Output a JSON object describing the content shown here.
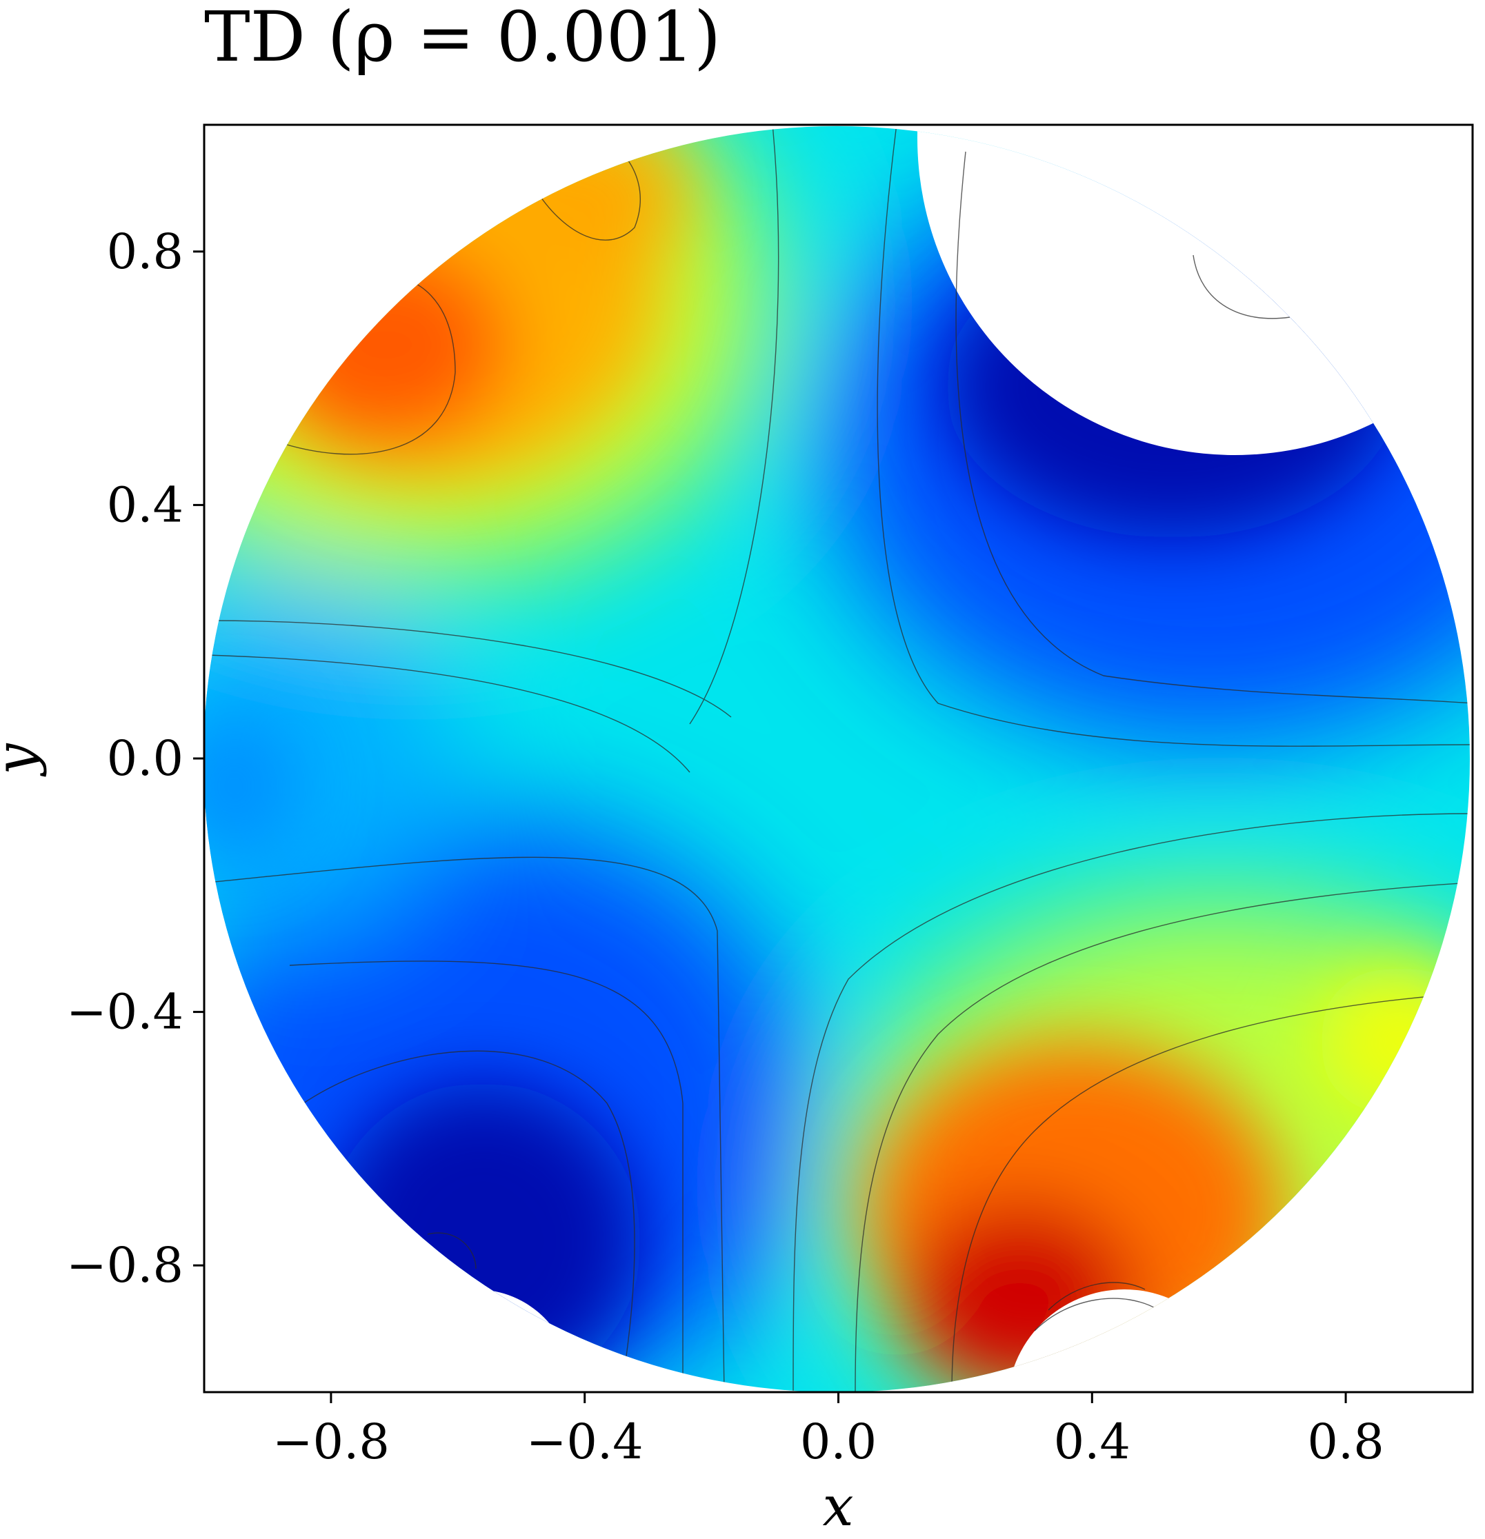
{
  "chart_data": {
    "type": "contour",
    "title": "TD (ρ = 0.001)",
    "xlabel": "x",
    "ylabel": "y",
    "xlim": [
      -1.0,
      1.0
    ],
    "ylim": [
      -1.0,
      1.0
    ],
    "x_ticks": [
      -0.8,
      -0.4,
      0.0,
      0.4,
      0.8
    ],
    "y_ticks": [
      -0.8,
      -0.4,
      0.0,
      0.4,
      0.8
    ],
    "x_tick_labels": [
      "−0.8",
      "−0.4",
      "0.0",
      "0.4",
      "0.8"
    ],
    "y_tick_labels": [
      "−0.8",
      "−0.4",
      "0.0",
      "0.4",
      "0.8"
    ],
    "colormap": "jet",
    "domain": "unit disk (radius 1) centered at origin with empty (white) regions near (0.6, 0.8) and the bottom edge",
    "features": [
      {
        "kind": "max",
        "x": -0.7,
        "y": 0.67,
        "level": 0.85
      },
      {
        "kind": "local_max",
        "x": -0.35,
        "y": 0.9,
        "level": 0.75
      },
      {
        "kind": "max",
        "x": 0.3,
        "y": -0.85,
        "level": 0.97
      },
      {
        "kind": "local_max",
        "x": 0.9,
        "y": -0.45,
        "level": 0.65
      },
      {
        "kind": "min",
        "x": 0.55,
        "y": 0.55,
        "level": 0.03
      },
      {
        "kind": "min",
        "x": -0.55,
        "y": -0.8,
        "level": 0.05
      },
      {
        "kind": "local_min",
        "x": -0.95,
        "y": -0.05,
        "level": 0.28
      }
    ],
    "grid": false,
    "legend": "none"
  }
}
